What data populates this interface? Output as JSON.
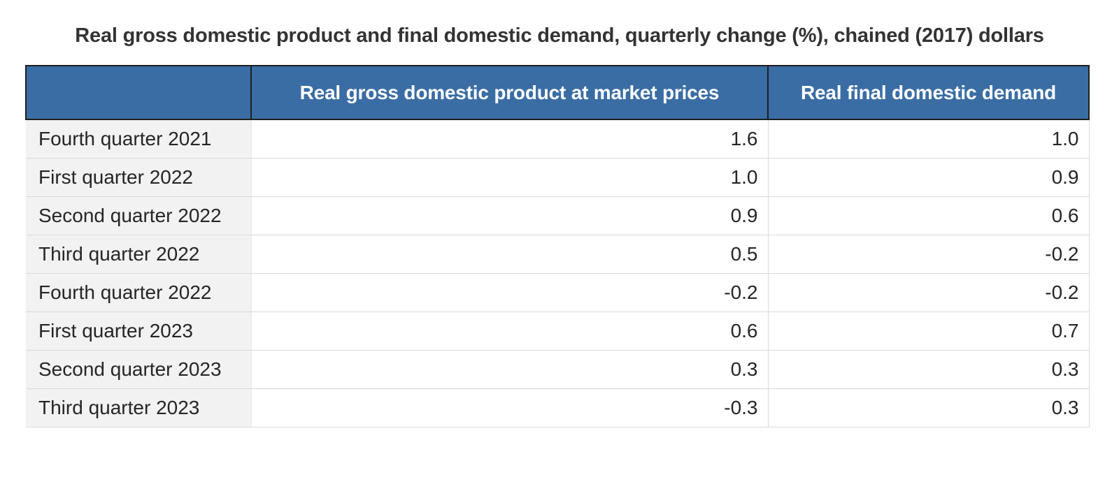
{
  "title": "Real gross domestic product and final domestic demand, quarterly change (%), chained (2017) dollars",
  "table": {
    "columns": [
      "",
      "Real gross domestic product at market prices",
      "Real final domestic demand"
    ],
    "rows": [
      {
        "label": "Fourth quarter 2021",
        "values": [
          "1.6",
          "1.0"
        ]
      },
      {
        "label": "First quarter 2022",
        "values": [
          "1.0",
          "0.9"
        ]
      },
      {
        "label": "Second quarter 2022",
        "values": [
          "0.9",
          "0.6"
        ]
      },
      {
        "label": "Third quarter 2022",
        "values": [
          "0.5",
          "-0.2"
        ]
      },
      {
        "label": "Fourth quarter 2022",
        "values": [
          "-0.2",
          "-0.2"
        ]
      },
      {
        "label": "First quarter 2023",
        "values": [
          "0.6",
          "0.7"
        ]
      },
      {
        "label": "Second quarter 2023",
        "values": [
          "0.3",
          "0.3"
        ]
      },
      {
        "label": "Third quarter 2023",
        "values": [
          "-0.3",
          "0.3"
        ]
      }
    ]
  },
  "chart_data": {
    "type": "table",
    "title": "Real gross domestic product and final domestic demand, quarterly change (%), chained (2017) dollars",
    "categories": [
      "Fourth quarter 2021",
      "First quarter 2022",
      "Second quarter 2022",
      "Third quarter 2022",
      "Fourth quarter 2022",
      "First quarter 2023",
      "Second quarter 2023",
      "Third quarter 2023"
    ],
    "series": [
      {
        "name": "Real gross domestic product at market prices",
        "values": [
          1.6,
          1.0,
          0.9,
          0.5,
          -0.2,
          0.6,
          0.3,
          -0.3
        ]
      },
      {
        "name": "Real final domestic demand",
        "values": [
          1.0,
          0.9,
          0.6,
          -0.2,
          -0.2,
          0.7,
          0.3,
          0.3
        ]
      }
    ]
  },
  "colors": {
    "header_bg": "#3a6da4",
    "header_text": "#ffffff",
    "header_border": "#1f1f1f",
    "row_label_bg": "#f2f2f2",
    "row_border": "#d9d9d9",
    "body_text": "#262626",
    "title_text": "#333333"
  }
}
